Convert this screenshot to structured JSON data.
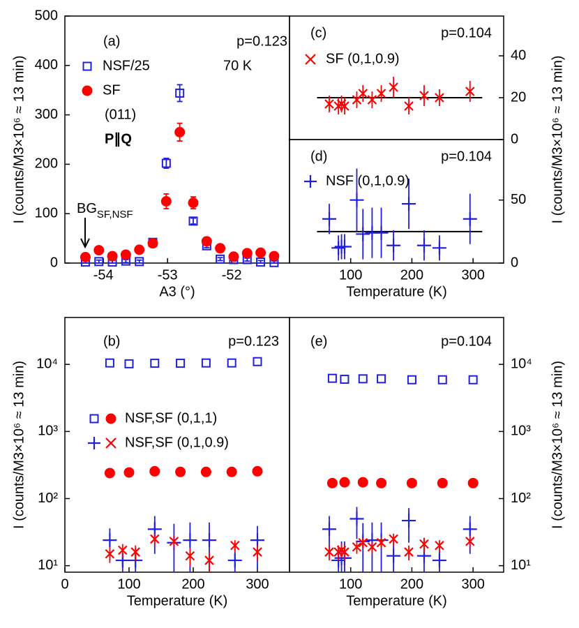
{
  "chart_data": [
    {
      "type": "scatter",
      "panel": "a",
      "xlabel": "A3 (°)",
      "ylabel": "I (counts/M3×10⁶ ≈ 13 min)",
      "xlim": [
        -54.6,
        -51.1
      ],
      "xticks": [
        -54,
        -53,
        -52
      ],
      "ylim": [
        0,
        500
      ],
      "yticks": [
        0,
        100,
        200,
        300,
        400,
        500
      ],
      "yaxis_side": "left",
      "annotations": [
        "(a)",
        "p=0.123",
        "70 K",
        "(011)",
        "P∥Q"
      ],
      "bg_label": {
        "text": "BG",
        "subscript": "SF,NSF"
      },
      "legend": [
        {
          "text": "NSF/25",
          "series": [
            0
          ]
        },
        {
          "text": "SF",
          "series": [
            1
          ]
        }
      ],
      "series": [
        {
          "marker": "square",
          "color": "#1f1fe0",
          "x": [
            -54.28,
            -54.07,
            -53.86,
            -53.65,
            -53.44,
            -53.23,
            -53.02,
            -52.81,
            -52.6,
            -52.39,
            -52.18,
            -51.97,
            -51.76,
            -51.55,
            -51.34
          ],
          "values": [
            2,
            3,
            2,
            4,
            3,
            42,
            202,
            344,
            85,
            35,
            8,
            7,
            7,
            2,
            1
          ],
          "errors": [
            3,
            3,
            3,
            3,
            3,
            5,
            10,
            17,
            6,
            4,
            3,
            3,
            3,
            3,
            3
          ]
        },
        {
          "marker": "circle",
          "color": "#ff0000",
          "x": [
            -54.28,
            -54.07,
            -53.86,
            -53.65,
            -53.44,
            -53.23,
            -53.02,
            -52.81,
            -52.6,
            -52.39,
            -52.18,
            -51.97,
            -51.76,
            -51.55,
            -51.34
          ],
          "values": [
            12,
            26,
            14,
            17,
            27,
            40,
            125,
            265,
            122,
            44,
            30,
            13,
            20,
            21,
            14
          ],
          "errors": [
            6,
            6,
            6,
            6,
            7,
            8,
            15,
            18,
            12,
            8,
            7,
            6,
            6,
            6,
            6
          ]
        }
      ]
    },
    {
      "type": "scatter",
      "panel": "c",
      "ylabel": "I (counts/M3×10⁶ ≈ 13 min)",
      "xlim": [
        0,
        350
      ],
      "ylim": [
        0,
        59
      ],
      "yticks": [
        0,
        20,
        40
      ],
      "yaxis_side": "right",
      "annotations": [
        "(c)",
        "p=0.104"
      ],
      "legend": [
        {
          "text": "SF (0,1,0.9)",
          "series": [
            0
          ]
        }
      ],
      "fit_line": 20,
      "fit_x": [
        45,
        315
      ],
      "series": [
        {
          "marker": "x",
          "color": "#ff0000",
          "x": [
            65,
            80,
            85,
            90,
            110,
            120,
            135,
            150,
            170,
            195,
            220,
            245,
            295
          ],
          "values": [
            17,
            16,
            17,
            16,
            19,
            22,
            19,
            22,
            25,
            16,
            21,
            20,
            23
          ],
          "errors": [
            4,
            4,
            4,
            4,
            4,
            4,
            4,
            4,
            5,
            4,
            5,
            4,
            5
          ]
        }
      ]
    },
    {
      "type": "scatter",
      "panel": "d",
      "xlabel": "Temperature (K)",
      "xlim": [
        0,
        350
      ],
      "xticks": [
        100,
        200,
        300
      ],
      "ylim": [
        0,
        98
      ],
      "yticks": [
        0,
        50
      ],
      "yaxis_side": "right",
      "annotations": [
        "(d)",
        "p=0.104"
      ],
      "legend": [
        {
          "text": "NSF (0,1,0.9)",
          "series": [
            0
          ]
        }
      ],
      "fit_line": 25,
      "fit_x": [
        45,
        315
      ],
      "series": [
        {
          "marker": "plus",
          "color": "#1f1fe0",
          "x": [
            65,
            80,
            85,
            90,
            110,
            120,
            135,
            150,
            170,
            195,
            220,
            245,
            295
          ],
          "values": [
            35,
            12,
            13,
            13,
            50,
            23,
            24,
            24,
            14,
            47,
            14,
            12,
            35
          ],
          "errors": [
            12,
            10,
            10,
            10,
            25,
            20,
            20,
            20,
            12,
            20,
            12,
            10,
            20
          ]
        }
      ]
    },
    {
      "type": "scatter",
      "panel": "b",
      "xlabel": "Temperature (K)",
      "ylabel": "I (counts/M3×10⁶ ≈ 13 min)",
      "log_y": true,
      "xlim": [
        0,
        350
      ],
      "xticks": [
        0,
        100,
        200,
        300
      ],
      "ylim": [
        8,
        50000
      ],
      "yticks": [
        {
          "value": 10,
          "label": "10¹"
        },
        {
          "value": 100,
          "label": "10²"
        },
        {
          "value": 1000,
          "label": "10³"
        },
        {
          "value": 10000,
          "label": "10⁴"
        }
      ],
      "yaxis_side": "left",
      "annotations": [
        "(b)",
        "p=0.123"
      ],
      "legend": [
        {
          "text": "NSF,SF (0,1,1)",
          "series": [
            0,
            1
          ]
        },
        {
          "text": "NSF,SF (0,1,0.9)",
          "series": [
            2,
            3
          ]
        }
      ],
      "series": [
        {
          "marker": "square",
          "color": "#1f1fe0",
          "x": [
            70,
            100,
            140,
            180,
            220,
            260,
            300
          ],
          "values": [
            10500,
            10200,
            10400,
            10400,
            10500,
            10500,
            11000
          ]
        },
        {
          "marker": "circle",
          "color": "#ff0000",
          "x": [
            70,
            100,
            140,
            180,
            220,
            260,
            300
          ],
          "values": [
            240,
            245,
            255,
            250,
            250,
            250,
            255
          ]
        },
        {
          "marker": "plus",
          "color": "#1f1fe0",
          "x": [
            70,
            90,
            110,
            140,
            170,
            195,
            225,
            265,
            300
          ],
          "values": [
            24,
            12,
            12,
            35,
            22,
            24,
            24,
            12,
            24
          ],
          "errors": [
            12,
            6,
            6,
            20,
            20,
            20,
            20,
            6,
            15
          ]
        },
        {
          "marker": "x",
          "color": "#ff0000",
          "x": [
            70,
            90,
            110,
            140,
            170,
            195,
            225,
            265,
            300
          ],
          "values": [
            15,
            17,
            16,
            25,
            23,
            14,
            12,
            20,
            16
          ],
          "errors": [
            4,
            4,
            4,
            5,
            5,
            4,
            4,
            4,
            4
          ]
        }
      ]
    },
    {
      "type": "scatter",
      "panel": "e",
      "xlabel": "Temperature (K)",
      "ylabel": "I (counts/M3×10⁶ ≈ 13 min)",
      "log_y": true,
      "xlim": [
        0,
        350
      ],
      "xticks": [
        100,
        200,
        300
      ],
      "ylim": [
        8,
        50000
      ],
      "yticks": [
        {
          "value": 10,
          "label": "10¹"
        },
        {
          "value": 100,
          "label": "10²"
        },
        {
          "value": 1000,
          "label": "10³"
        },
        {
          "value": 10000,
          "label": "10⁴"
        }
      ],
      "yaxis_side": "right",
      "annotations": [
        "(e)",
        "p=0.104"
      ],
      "series": [
        {
          "marker": "square",
          "color": "#1f1fe0",
          "x": [
            70,
            90,
            120,
            150,
            200,
            250,
            300
          ],
          "values": [
            6200,
            6000,
            6100,
            6100,
            5900,
            5900,
            5900
          ]
        },
        {
          "marker": "circle",
          "color": "#ff0000",
          "x": [
            70,
            90,
            120,
            150,
            200,
            250,
            300
          ],
          "values": [
            170,
            175,
            175,
            170,
            170,
            170,
            170
          ]
        },
        {
          "marker": "plus",
          "color": "#1f1fe0",
          "x": [
            65,
            80,
            85,
            90,
            110,
            120,
            135,
            150,
            170,
            195,
            220,
            245,
            295
          ],
          "values": [
            35,
            12,
            13,
            13,
            50,
            23,
            24,
            24,
            14,
            47,
            14,
            12,
            35
          ],
          "errors": [
            20,
            8,
            10,
            10,
            25,
            20,
            20,
            20,
            12,
            25,
            12,
            8,
            20
          ]
        },
        {
          "marker": "x",
          "color": "#ff0000",
          "x": [
            65,
            80,
            85,
            90,
            110,
            120,
            135,
            150,
            170,
            195,
            220,
            245,
            295
          ],
          "values": [
            16,
            16,
            17,
            16,
            19,
            22,
            19,
            22,
            25,
            16,
            21,
            20,
            23
          ],
          "errors": [
            4,
            4,
            4,
            4,
            4,
            4,
            4,
            4,
            5,
            4,
            5,
            4,
            5
          ]
        }
      ]
    }
  ]
}
